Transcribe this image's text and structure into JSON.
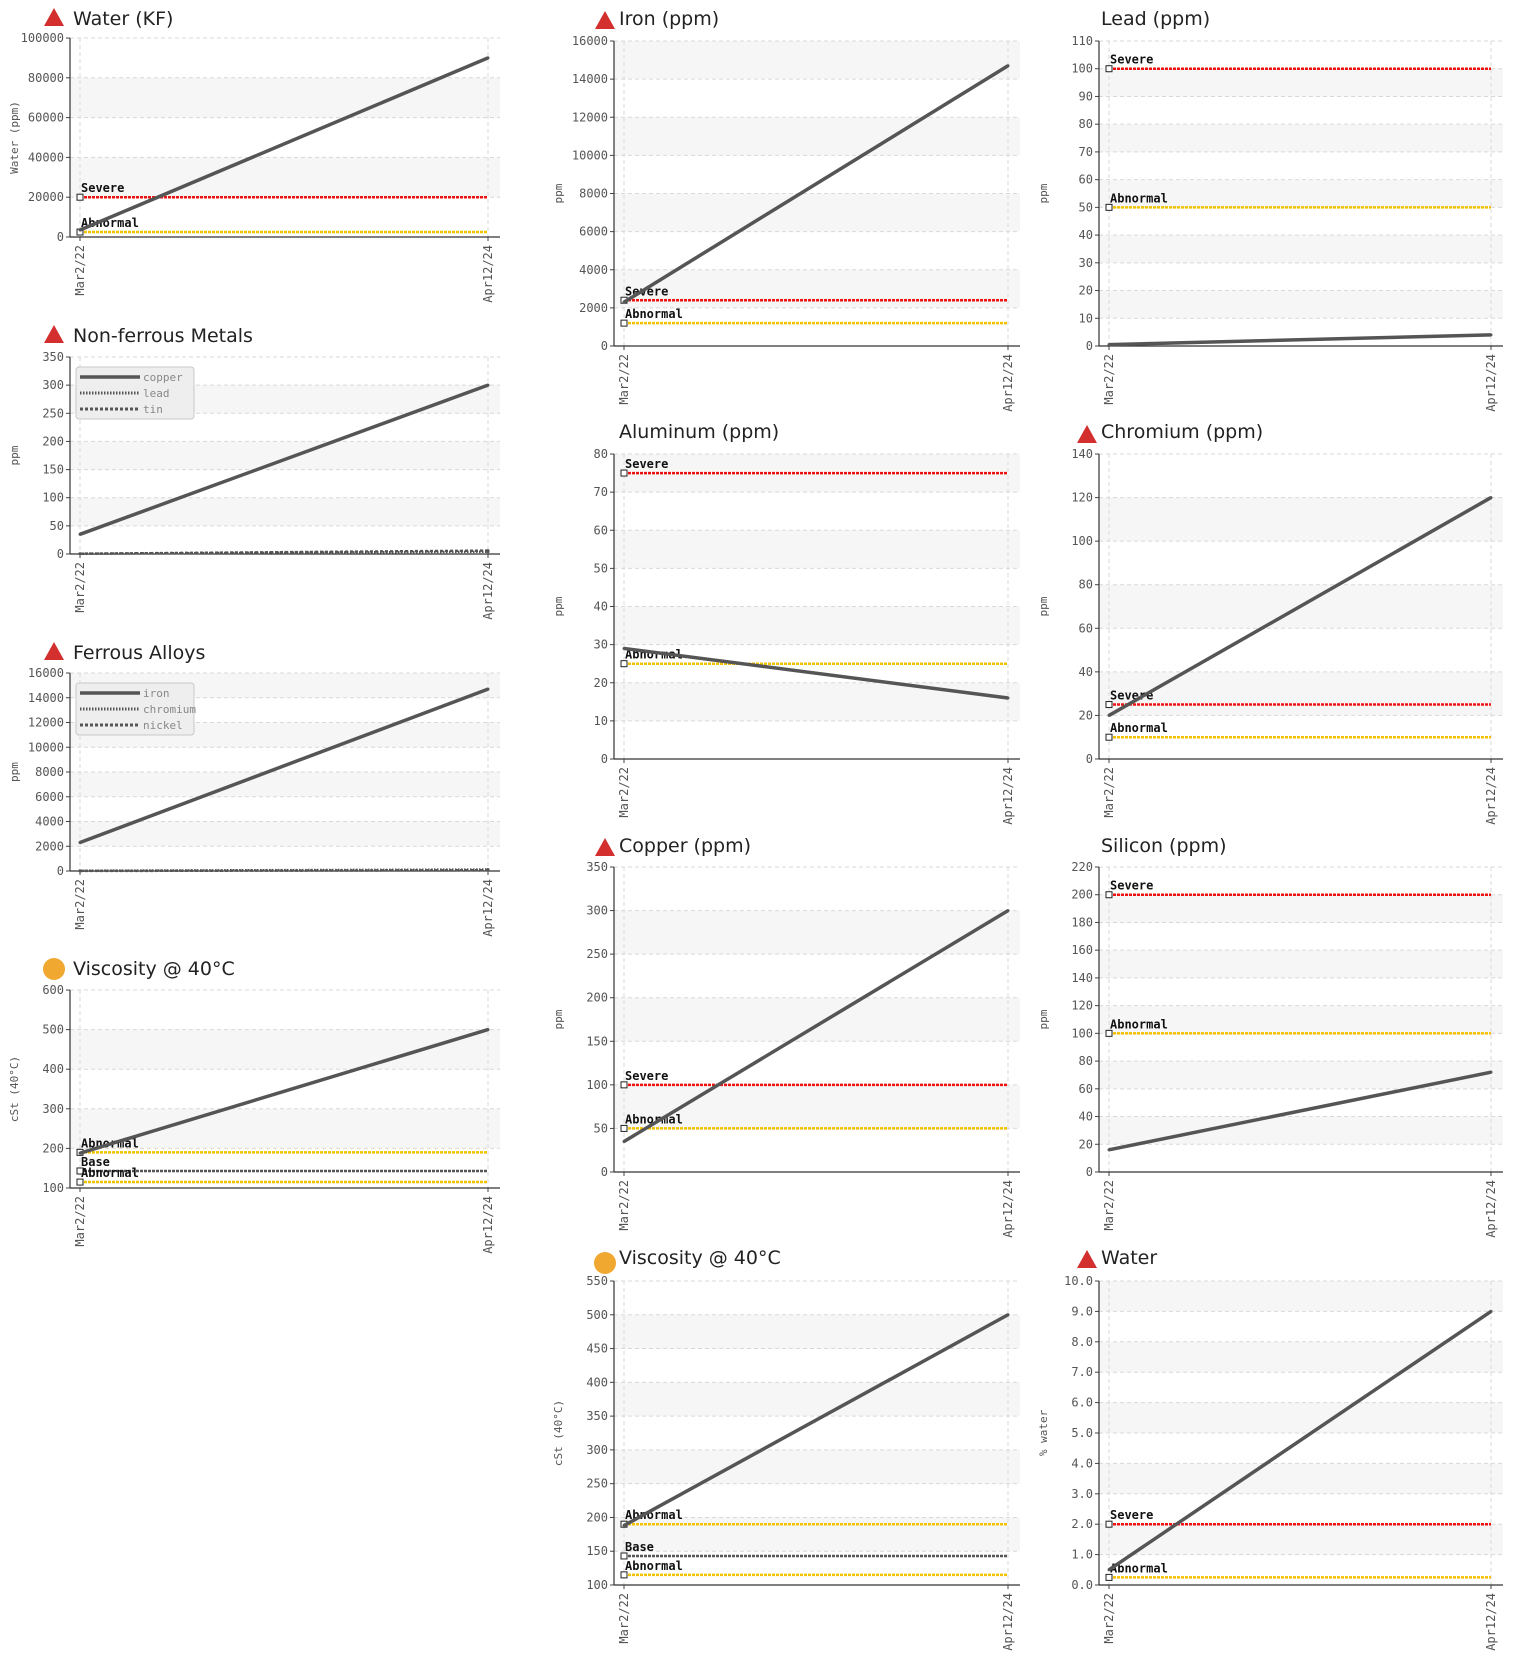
{
  "charts": [
    {
      "id": "water-kf",
      "title": "Water (KF)",
      "status": "severe-icon",
      "ylabel": "Water (ppm)",
      "ylim": [
        0,
        100000
      ],
      "yticks": [
        {
          "v": 0,
          "t": "0"
        },
        {
          "v": 20000,
          "t": "20000"
        },
        {
          "v": 40000,
          "t": "40000"
        },
        {
          "v": 60000,
          "t": "60000"
        },
        {
          "v": 80000,
          "t": "80000"
        },
        {
          "v": 100000,
          "t": "100000"
        }
      ],
      "dates": [
        "Mar2/22",
        "Apr12/24"
      ],
      "limits": [
        {
          "label": "Severe",
          "value": 20000,
          "color": "#ee1111"
        },
        {
          "label": "Abnormal",
          "value": 2500,
          "color": "#f2c200"
        }
      ],
      "series": [
        {
          "name": "",
          "values": [
            3500,
            90000
          ],
          "style": "solid"
        }
      ],
      "legend": null
    },
    {
      "id": "nonferrous",
      "title": "Non-ferrous Metals",
      "status": "severe-icon",
      "ylabel": "ppm",
      "ylim": [
        0,
        350
      ],
      "yticks": [
        {
          "v": 0,
          "t": "0"
        },
        {
          "v": 50,
          "t": "50"
        },
        {
          "v": 100,
          "t": "100"
        },
        {
          "v": 150,
          "t": "150"
        },
        {
          "v": 200,
          "t": "200"
        },
        {
          "v": 250,
          "t": "250"
        },
        {
          "v": 300,
          "t": "300"
        },
        {
          "v": 350,
          "t": "350"
        }
      ],
      "dates": [
        "Mar2/22",
        "Apr12/24"
      ],
      "limits": [],
      "series": [
        {
          "name": "copper",
          "values": [
            35,
            300
          ],
          "style": "solid"
        },
        {
          "name": "lead",
          "values": [
            0.5,
            4
          ],
          "style": "dotted"
        },
        {
          "name": "tin",
          "values": [
            0.5,
            6
          ],
          "style": "dashed"
        }
      ],
      "legend": [
        "copper",
        "lead",
        "tin"
      ]
    },
    {
      "id": "ferrous",
      "title": "Ferrous Alloys",
      "status": "severe-icon",
      "ylabel": "ppm",
      "ylim": [
        0,
        16000
      ],
      "yticks": [
        {
          "v": 0,
          "t": "0"
        },
        {
          "v": 2000,
          "t": "2000"
        },
        {
          "v": 4000,
          "t": "4000"
        },
        {
          "v": 6000,
          "t": "6000"
        },
        {
          "v": 8000,
          "t": "8000"
        },
        {
          "v": 10000,
          "t": "10000"
        },
        {
          "v": 12000,
          "t": "12000"
        },
        {
          "v": 14000,
          "t": "14000"
        },
        {
          "v": 16000,
          "t": "16000"
        }
      ],
      "dates": [
        "Mar2/22",
        "Apr12/24"
      ],
      "limits": [],
      "series": [
        {
          "name": "iron",
          "values": [
            2300,
            14700
          ],
          "style": "solid"
        },
        {
          "name": "chromium",
          "values": [
            20,
            120
          ],
          "style": "dotted"
        },
        {
          "name": "nickel",
          "values": [
            5,
            60
          ],
          "style": "dashed"
        }
      ],
      "legend": [
        "iron",
        "chromium",
        "nickel"
      ]
    },
    {
      "id": "visc-left",
      "title": "Viscosity @ 40°C",
      "status": "abnormal-icon",
      "ylabel": "cSt (40°C)",
      "ylim": [
        100,
        600
      ],
      "yticks": [
        {
          "v": 100,
          "t": "100"
        },
        {
          "v": 200,
          "t": "200"
        },
        {
          "v": 300,
          "t": "300"
        },
        {
          "v": 400,
          "t": "400"
        },
        {
          "v": 500,
          "t": "500"
        },
        {
          "v": 600,
          "t": "600"
        }
      ],
      "dates": [
        "Mar2/22",
        "Apr12/24"
      ],
      "limits": [
        {
          "label": "Abnormal",
          "value": 190,
          "color": "#f2c200"
        },
        {
          "label": "Base",
          "value": 143,
          "color": "#555555"
        },
        {
          "label": "Abnormal",
          "value": 115,
          "color": "#f2c200"
        }
      ],
      "series": [
        {
          "name": "",
          "values": [
            188,
            500
          ],
          "style": "solid"
        }
      ],
      "legend": null
    },
    {
      "id": "iron",
      "title": "Iron (ppm)",
      "status": "severe-icon",
      "ylabel": "ppm",
      "ylim": [
        0,
        16000
      ],
      "yticks": [
        {
          "v": 0,
          "t": "0"
        },
        {
          "v": 2000,
          "t": "2000"
        },
        {
          "v": 4000,
          "t": "4000"
        },
        {
          "v": 6000,
          "t": "6000"
        },
        {
          "v": 8000,
          "t": "8000"
        },
        {
          "v": 10000,
          "t": "10000"
        },
        {
          "v": 12000,
          "t": "12000"
        },
        {
          "v": 14000,
          "t": "14000"
        },
        {
          "v": 16000,
          "t": "16000"
        }
      ],
      "dates": [
        "Mar2/22",
        "Apr12/24"
      ],
      "limits": [
        {
          "label": "Severe",
          "value": 2400,
          "color": "#ee1111"
        },
        {
          "label": "Abnormal",
          "value": 1200,
          "color": "#f2c200"
        }
      ],
      "series": [
        {
          "name": "",
          "values": [
            2300,
            14700
          ],
          "style": "solid"
        }
      ],
      "legend": null
    },
    {
      "id": "lead",
      "title": "Lead (ppm)",
      "status": "",
      "ylabel": "ppm",
      "ylim": [
        0,
        110
      ],
      "yticks": [
        {
          "v": 0,
          "t": "0"
        },
        {
          "v": 10,
          "t": "10"
        },
        {
          "v": 20,
          "t": "20"
        },
        {
          "v": 30,
          "t": "30"
        },
        {
          "v": 40,
          "t": "40"
        },
        {
          "v": 50,
          "t": "50"
        },
        {
          "v": 60,
          "t": "60"
        },
        {
          "v": 70,
          "t": "70"
        },
        {
          "v": 80,
          "t": "80"
        },
        {
          "v": 90,
          "t": "90"
        },
        {
          "v": 100,
          "t": "100"
        },
        {
          "v": 110,
          "t": "110"
        }
      ],
      "dates": [
        "Mar2/22",
        "Apr12/24"
      ],
      "limits": [
        {
          "label": "Severe",
          "value": 100,
          "color": "#ee1111"
        },
        {
          "label": "Abnormal",
          "value": 50,
          "color": "#f2c200"
        }
      ],
      "series": [
        {
          "name": "",
          "values": [
            0.5,
            4
          ],
          "style": "solid"
        }
      ],
      "legend": null
    },
    {
      "id": "aluminum",
      "title": "Aluminum (ppm)",
      "status": "",
      "ylabel": "ppm",
      "ylim": [
        0,
        80
      ],
      "yticks": [
        {
          "v": 0,
          "t": "0"
        },
        {
          "v": 10,
          "t": "10"
        },
        {
          "v": 20,
          "t": "20"
        },
        {
          "v": 30,
          "t": "30"
        },
        {
          "v": 40,
          "t": "40"
        },
        {
          "v": 50,
          "t": "50"
        },
        {
          "v": 60,
          "t": "60"
        },
        {
          "v": 70,
          "t": "70"
        },
        {
          "v": 80,
          "t": "80"
        }
      ],
      "dates": [
        "Mar2/22",
        "Apr12/24"
      ],
      "limits": [
        {
          "label": "Severe",
          "value": 75,
          "color": "#ee1111"
        },
        {
          "label": "Abnormal",
          "value": 25,
          "color": "#f2c200"
        }
      ],
      "series": [
        {
          "name": "",
          "values": [
            29,
            16
          ],
          "style": "solid"
        }
      ],
      "legend": null
    },
    {
      "id": "chromium",
      "title": "Chromium (ppm)",
      "status": "severe-icon",
      "ylabel": "ppm",
      "ylim": [
        0,
        140
      ],
      "yticks": [
        {
          "v": 0,
          "t": "0"
        },
        {
          "v": 20,
          "t": "20"
        },
        {
          "v": 40,
          "t": "40"
        },
        {
          "v": 60,
          "t": "60"
        },
        {
          "v": 80,
          "t": "80"
        },
        {
          "v": 100,
          "t": "100"
        },
        {
          "v": 120,
          "t": "120"
        },
        {
          "v": 140,
          "t": "140"
        }
      ],
      "dates": [
        "Mar2/22",
        "Apr12/24"
      ],
      "limits": [
        {
          "label": "Severe",
          "value": 25,
          "color": "#ee1111"
        },
        {
          "label": "Abnormal",
          "value": 10,
          "color": "#f2c200"
        }
      ],
      "series": [
        {
          "name": "",
          "values": [
            20,
            120
          ],
          "style": "solid"
        }
      ],
      "legend": null
    },
    {
      "id": "copper",
      "title": "Copper (ppm)",
      "status": "severe-icon",
      "ylabel": "ppm",
      "ylim": [
        0,
        350
      ],
      "yticks": [
        {
          "v": 0,
          "t": "0"
        },
        {
          "v": 50,
          "t": "50"
        },
        {
          "v": 100,
          "t": "100"
        },
        {
          "v": 150,
          "t": "150"
        },
        {
          "v": 200,
          "t": "200"
        },
        {
          "v": 250,
          "t": "250"
        },
        {
          "v": 300,
          "t": "300"
        },
        {
          "v": 350,
          "t": "350"
        }
      ],
      "dates": [
        "Mar2/22",
        "Apr12/24"
      ],
      "limits": [
        {
          "label": "Severe",
          "value": 100,
          "color": "#ee1111"
        },
        {
          "label": "Abnormal",
          "value": 50,
          "color": "#f2c200"
        }
      ],
      "series": [
        {
          "name": "",
          "values": [
            35,
            300
          ],
          "style": "solid"
        }
      ],
      "legend": null
    },
    {
      "id": "silicon",
      "title": "Silicon (ppm)",
      "status": "",
      "ylabel": "ppm",
      "ylim": [
        0,
        220
      ],
      "yticks": [
        {
          "v": 0,
          "t": "0"
        },
        {
          "v": 20,
          "t": "20"
        },
        {
          "v": 40,
          "t": "40"
        },
        {
          "v": 60,
          "t": "60"
        },
        {
          "v": 80,
          "t": "80"
        },
        {
          "v": 100,
          "t": "100"
        },
        {
          "v": 120,
          "t": "120"
        },
        {
          "v": 140,
          "t": "140"
        },
        {
          "v": 160,
          "t": "160"
        },
        {
          "v": 180,
          "t": "180"
        },
        {
          "v": 200,
          "t": "200"
        },
        {
          "v": 220,
          "t": "220"
        }
      ],
      "dates": [
        "Mar2/22",
        "Apr12/24"
      ],
      "limits": [
        {
          "label": "Severe",
          "value": 200,
          "color": "#ee1111"
        },
        {
          "label": "Abnormal",
          "value": 100,
          "color": "#f2c200"
        }
      ],
      "series": [
        {
          "name": "",
          "values": [
            16,
            72
          ],
          "style": "solid"
        }
      ],
      "legend": null
    },
    {
      "id": "visc-mid",
      "title": "Viscosity @ 40°C",
      "status": "abnormal-icon",
      "ylabel": "cSt (40°C)",
      "ylim": [
        100,
        550
      ],
      "yticks": [
        {
          "v": 100,
          "t": "100"
        },
        {
          "v": 150,
          "t": "150"
        },
        {
          "v": 200,
          "t": "200"
        },
        {
          "v": 250,
          "t": "250"
        },
        {
          "v": 300,
          "t": "300"
        },
        {
          "v": 350,
          "t": "350"
        },
        {
          "v": 400,
          "t": "400"
        },
        {
          "v": 450,
          "t": "450"
        },
        {
          "v": 500,
          "t": "500"
        },
        {
          "v": 550,
          "t": "550"
        }
      ],
      "dates": [
        "Mar2/22",
        "Apr12/24"
      ],
      "limits": [
        {
          "label": "Abnormal",
          "value": 190,
          "color": "#f2c200"
        },
        {
          "label": "Base",
          "value": 143,
          "color": "#555555"
        },
        {
          "label": "Abnormal",
          "value": 115,
          "color": "#f2c200"
        }
      ],
      "series": [
        {
          "name": "",
          "values": [
            188,
            500
          ],
          "style": "solid"
        }
      ],
      "legend": null
    },
    {
      "id": "water-pct",
      "title": "Water",
      "status": "severe-icon",
      "ylabel": "% water",
      "ylim": [
        0,
        10
      ],
      "yticks": [
        {
          "v": 0,
          "t": "0.0"
        },
        {
          "v": 1,
          "t": "1.0"
        },
        {
          "v": 2,
          "t": "2.0"
        },
        {
          "v": 3,
          "t": "3.0"
        },
        {
          "v": 4,
          "t": "4.0"
        },
        {
          "v": 5,
          "t": "5.0"
        },
        {
          "v": 6,
          "t": "6.0"
        },
        {
          "v": 7,
          "t": "7.0"
        },
        {
          "v": 8,
          "t": "8.0"
        },
        {
          "v": 9,
          "t": "9.0"
        },
        {
          "v": 10,
          "t": "10.0"
        }
      ],
      "dates": [
        "Mar2/22",
        "Apr12/24"
      ],
      "limits": [
        {
          "label": "Severe",
          "value": 2,
          "color": "#ee1111"
        },
        {
          "label": "Abnormal",
          "value": 0.25,
          "color": "#f2c200"
        }
      ],
      "series": [
        {
          "name": "",
          "values": [
            0.5,
            9
          ],
          "style": "solid"
        }
      ],
      "legend": null
    }
  ]
}
